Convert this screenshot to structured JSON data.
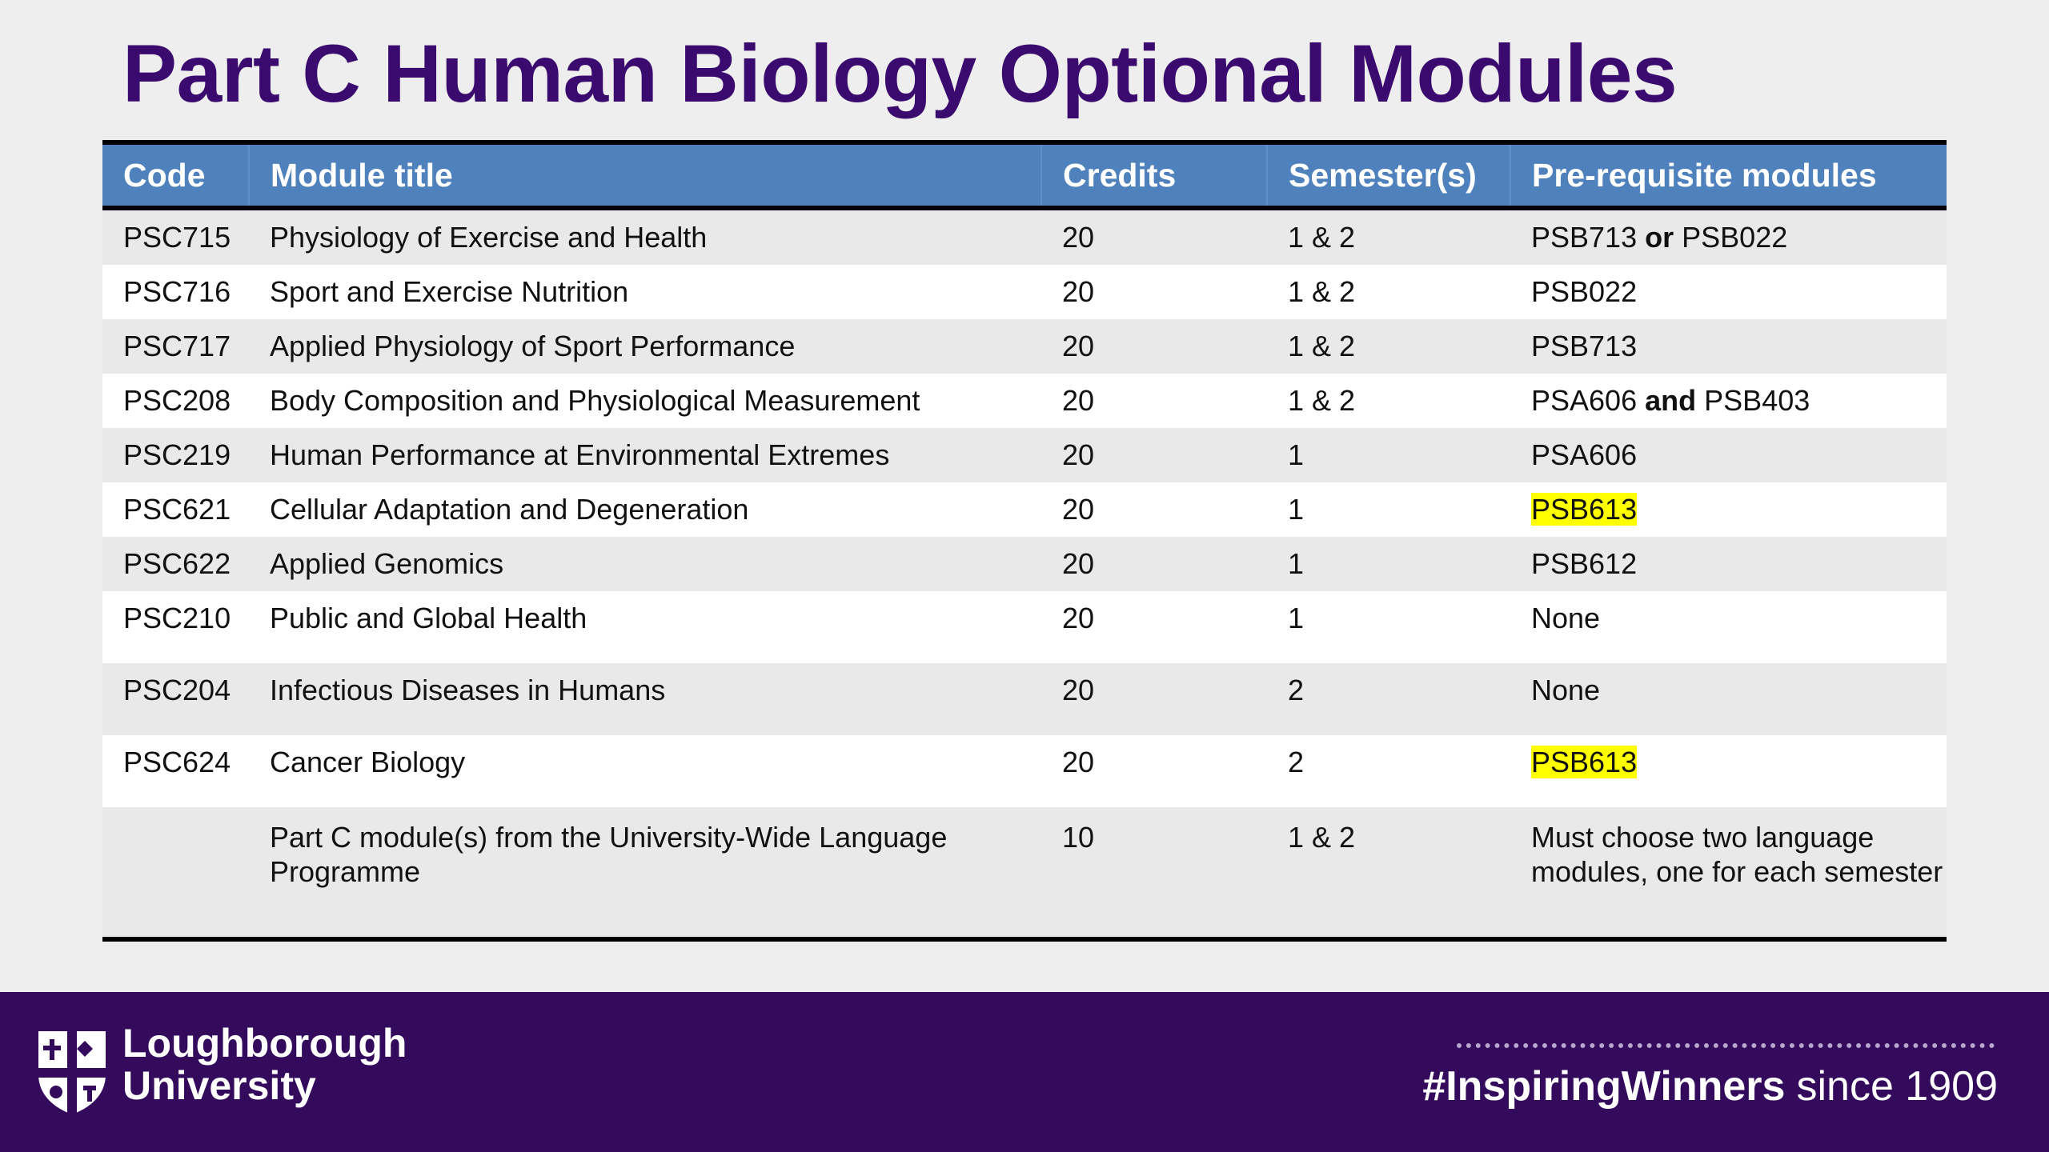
{
  "title": "Part C Human Biology Optional Modules",
  "table": {
    "headers": {
      "code": "Code",
      "title": "Module title",
      "credits": "Credits",
      "semesters": "Semester(s)",
      "prereq": "Pre-requisite modules"
    },
    "rows": [
      {
        "code": "PSC715",
        "title": "Physiology of Exercise and Health",
        "credits": "20",
        "semesters": "1 & 2",
        "prereq": {
          "a": "PSB713",
          "conj": "or",
          "b": "PSB022"
        }
      },
      {
        "code": "PSC716",
        "title": "Sport and Exercise Nutrition",
        "credits": "20",
        "semesters": "1 & 2",
        "prereq": {
          "text": "PSB022"
        }
      },
      {
        "code": "PSC717",
        "title": "Applied Physiology of Sport Performance",
        "credits": "20",
        "semesters": "1 & 2",
        "prereq": {
          "text": "PSB713"
        }
      },
      {
        "code": "PSC208",
        "title": "Body Composition and Physiological Measurement",
        "credits": "20",
        "semesters": "1 & 2",
        "prereq": {
          "a": "PSA606",
          "conj": "and",
          "b": "PSB403"
        }
      },
      {
        "code": "PSC219",
        "title": "Human Performance at Environmental Extremes",
        "credits": "20",
        "semesters": "1",
        "prereq": {
          "text": "PSA606"
        }
      },
      {
        "code": "PSC621",
        "title": "Cellular Adaptation and Degeneration",
        "credits": "20",
        "semesters": "1",
        "prereq": {
          "text": "PSB613"
        }
      },
      {
        "code": "PSC622",
        "title": "Applied Genomics",
        "credits": "20",
        "semesters": "1",
        "prereq": {
          "text": "PSB612"
        }
      },
      {
        "code": "PSC210",
        "title": "Public and Global Health",
        "credits": "20",
        "semesters": "1",
        "prereq": {
          "text": "None"
        }
      },
      {
        "code": "PSC204",
        "title": "Infectious Diseases in Humans",
        "credits": "20",
        "semesters": "2",
        "prereq": {
          "text": "None"
        }
      },
      {
        "code": "PSC624",
        "title": "Cancer Biology",
        "credits": "20",
        "semesters": "2",
        "prereq": {
          "text": "PSB613"
        }
      },
      {
        "code": "",
        "title": "Part C module(s) from the University-Wide Language Programme",
        "credits": "10",
        "semesters": "1 & 2",
        "prereq": {
          "text": "Must choose two language modules, one for each semester"
        }
      }
    ]
  },
  "footer": {
    "university_line1": "Loughborough",
    "university_line2": "University",
    "hashtag": "#InspiringWinners",
    "since": "since 1909",
    "logo_icon": "university-crest-icon"
  },
  "colors": {
    "title": "#3b0a6e",
    "header_bg": "#4f81bd",
    "footer_bg": "#330a5c",
    "highlight": "#ffff00"
  }
}
